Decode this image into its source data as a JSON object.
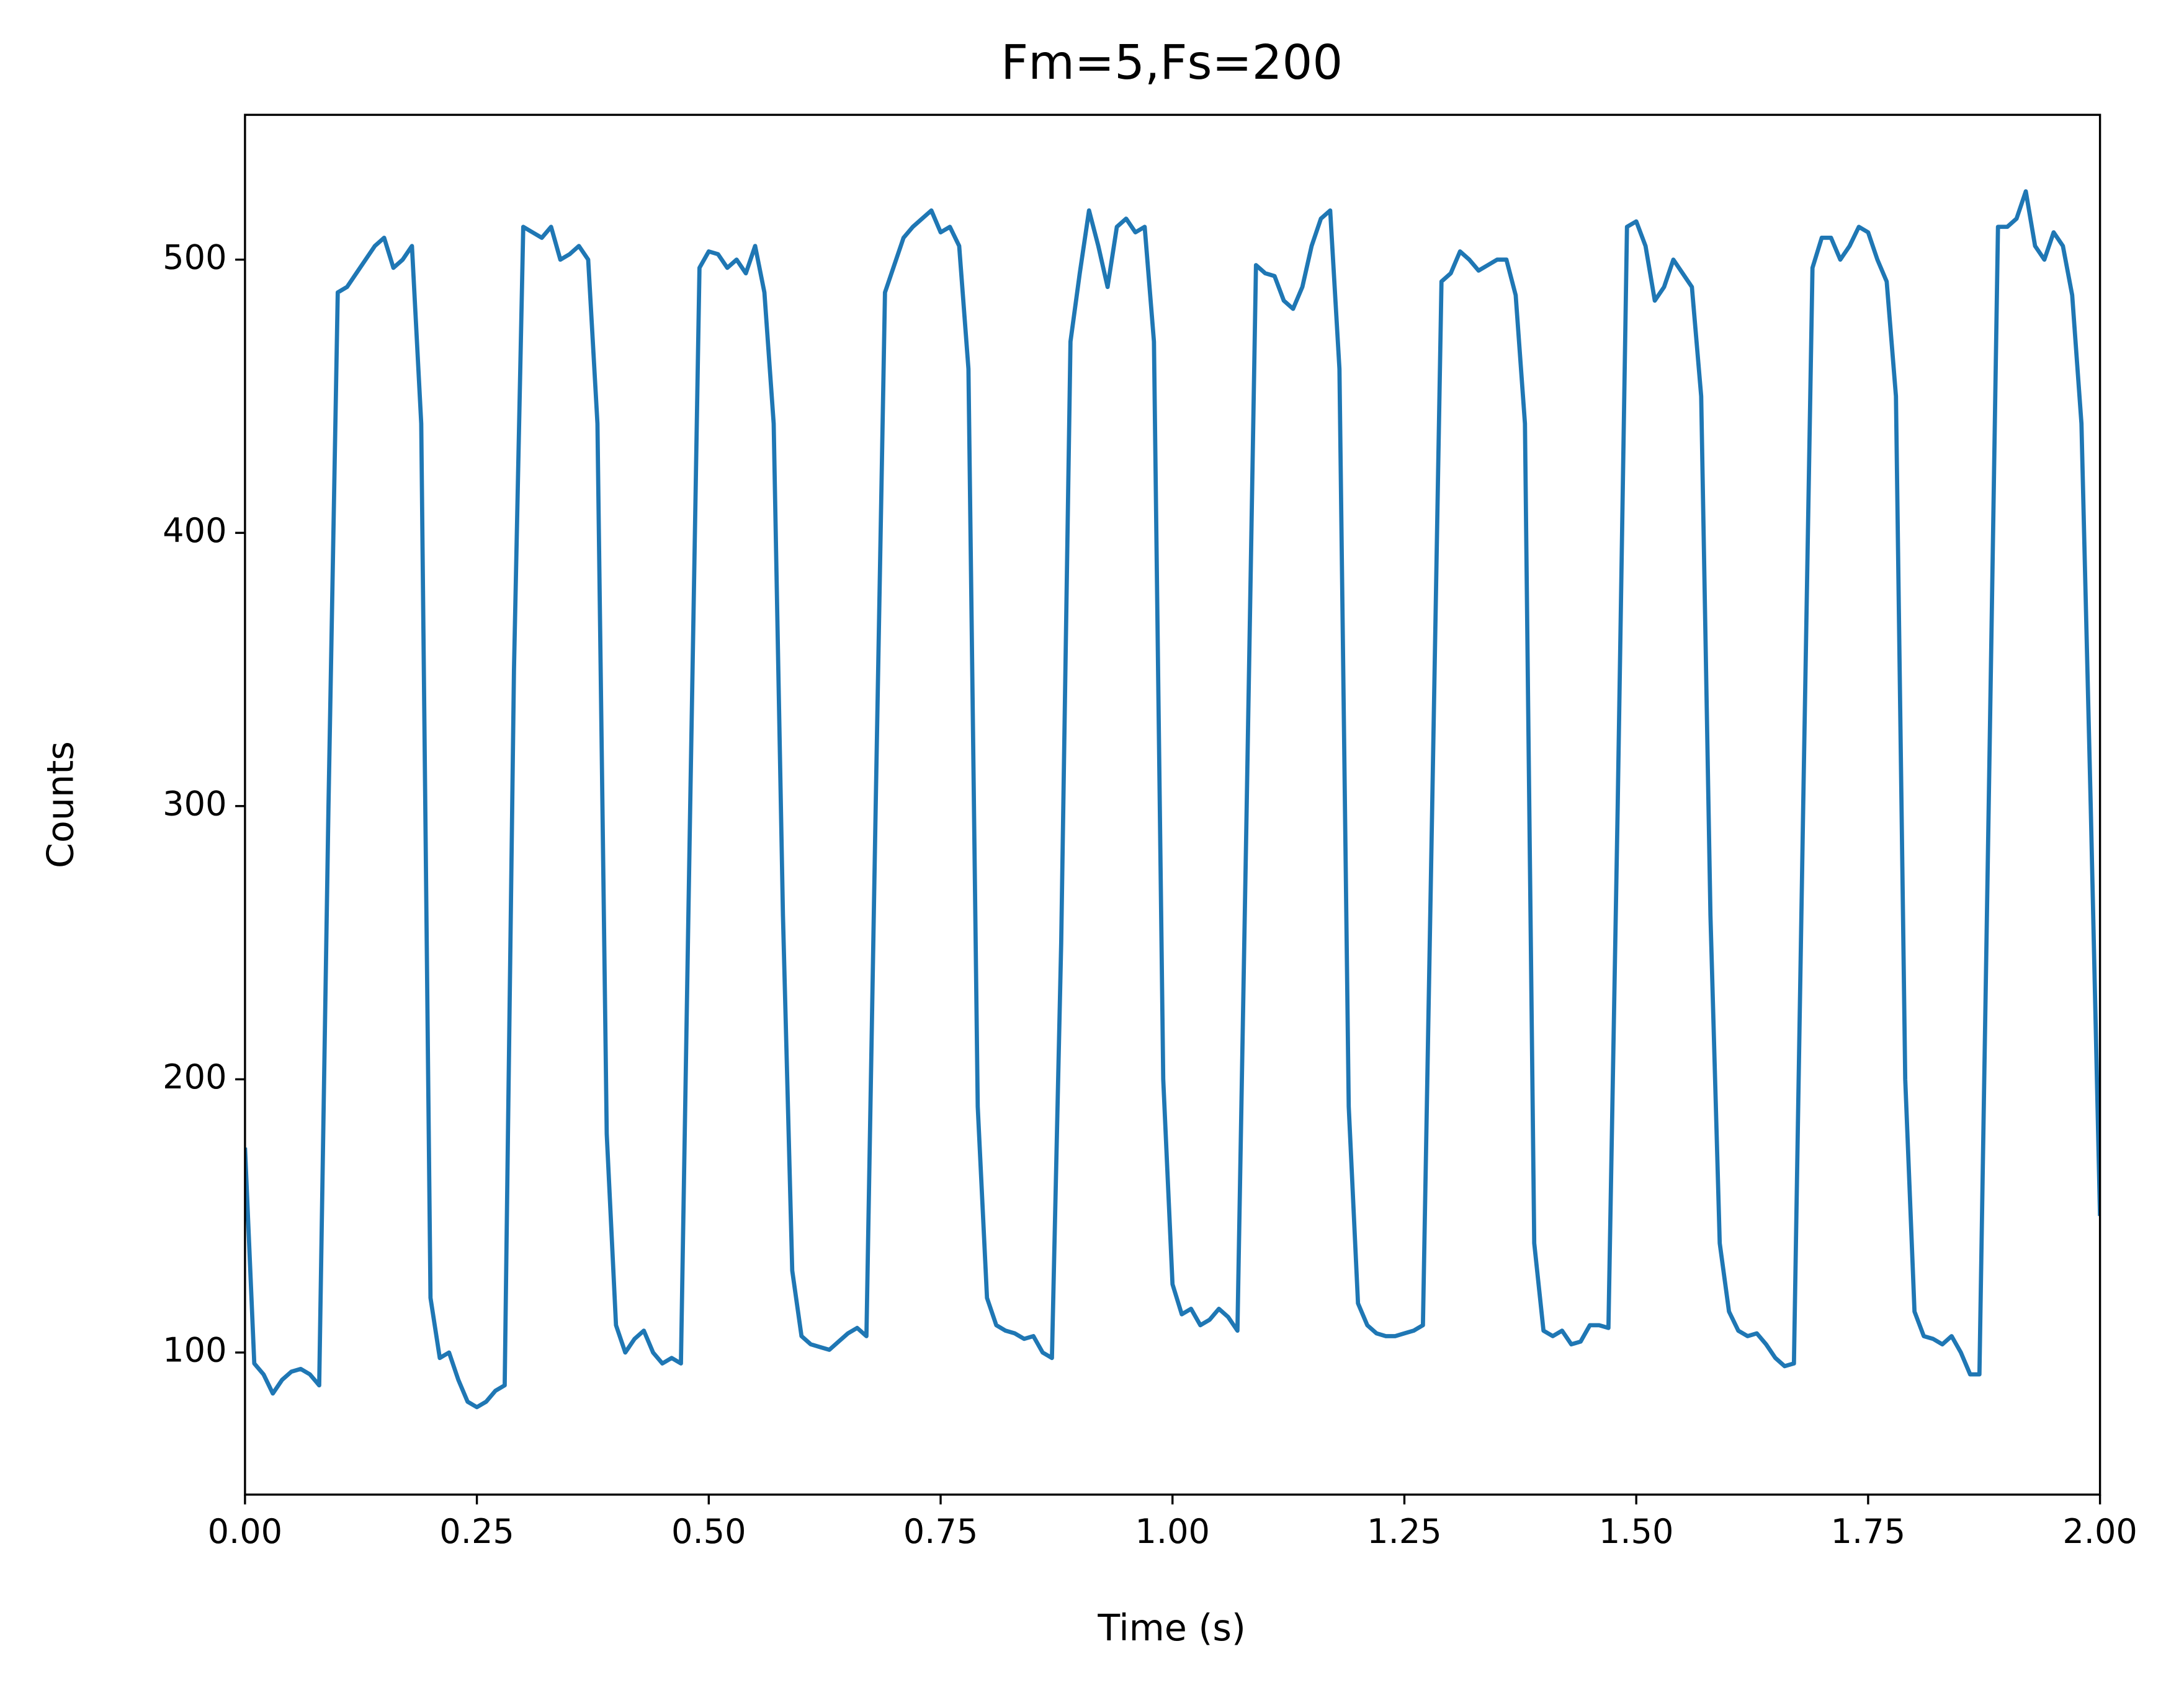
{
  "chart_data": {
    "type": "line",
    "title": "Fm=5,Fs=200",
    "xlabel": "Time (s)",
    "ylabel": "Counts",
    "x": [
      0,
      0.01,
      0.02,
      0.03,
      0.04,
      0.05,
      0.06,
      0.07,
      0.08,
      0.09,
      0.1,
      0.11,
      0.12,
      0.13,
      0.14,
      0.15,
      0.16,
      0.17,
      0.18,
      0.19,
      0.2,
      0.21,
      0.22,
      0.23,
      0.24,
      0.25,
      0.26,
      0.27,
      0.28,
      0.29,
      0.3,
      0.31,
      0.32,
      0.33,
      0.34,
      0.35,
      0.36,
      0.37,
      0.38,
      0.39,
      0.4,
      0.41,
      0.42,
      0.43,
      0.44,
      0.45,
      0.46,
      0.47,
      0.48,
      0.49,
      0.5,
      0.51,
      0.52,
      0.53,
      0.54,
      0.55,
      0.56,
      0.57,
      0.58,
      0.59,
      0.6,
      0.61,
      0.62,
      0.63,
      0.64,
      0.65,
      0.66,
      0.67,
      0.68,
      0.69,
      0.7,
      0.71,
      0.72,
      0.73,
      0.74,
      0.75,
      0.76,
      0.77,
      0.78,
      0.79,
      0.8,
      0.81,
      0.82,
      0.83,
      0.84,
      0.85,
      0.86,
      0.87,
      0.88,
      0.89,
      0.9,
      0.91,
      0.92,
      0.93,
      0.94,
      0.95,
      0.96,
      0.97,
      0.98,
      0.99,
      1,
      1.01,
      1.02,
      1.03,
      1.04,
      1.05,
      1.06,
      1.07,
      1.08,
      1.09,
      1.1,
      1.11,
      1.12,
      1.13,
      1.14,
      1.15,
      1.16,
      1.17,
      1.18,
      1.19,
      1.2,
      1.21,
      1.22,
      1.23,
      1.24,
      1.25,
      1.26,
      1.27,
      1.28,
      1.29,
      1.3,
      1.31,
      1.32,
      1.33,
      1.34,
      1.35,
      1.36,
      1.37,
      1.38,
      1.39,
      1.4,
      1.41,
      1.42,
      1.43,
      1.44,
      1.45,
      1.46,
      1.47,
      1.48,
      1.49,
      1.5,
      1.51,
      1.52,
      1.53,
      1.54,
      1.55,
      1.56,
      1.57,
      1.58,
      1.59,
      1.6,
      1.61,
      1.62,
      1.63,
      1.64,
      1.65,
      1.66,
      1.67,
      1.68,
      1.69,
      1.7,
      1.71,
      1.72,
      1.73,
      1.74,
      1.75,
      1.76,
      1.77,
      1.78,
      1.79,
      1.8,
      1.81,
      1.82,
      1.83,
      1.84,
      1.85,
      1.86,
      1.87,
      1.88,
      1.89,
      1.9,
      1.91,
      1.92,
      1.93,
      1.94,
      1.95,
      1.96,
      1.97,
      1.98,
      1.99,
      2
    ],
    "series": [
      {
        "name": "Counts",
        "color": "#1f77b4",
        "values": [
          175,
          96,
          92,
          85,
          90,
          93,
          94,
          92,
          88,
          300,
          488,
          490,
          495,
          500,
          505,
          508,
          497,
          500,
          505,
          440,
          120,
          98,
          100,
          90,
          82,
          80,
          82,
          86,
          88,
          350,
          512,
          510,
          508,
          512,
          500,
          502,
          505,
          500,
          440,
          180,
          110,
          100,
          105,
          108,
          100,
          96,
          98,
          96,
          300,
          497,
          503,
          502,
          497,
          500,
          495,
          505,
          488,
          440,
          260,
          130,
          106,
          103,
          102,
          101,
          104,
          107,
          109,
          106,
          300,
          488,
          498,
          508,
          512,
          515,
          518,
          510,
          512,
          505,
          460,
          190,
          120,
          110,
          108,
          107,
          105,
          106,
          100,
          98,
          250,
          470,
          495,
          518,
          505,
          490,
          512,
          515,
          510,
          512,
          470,
          200,
          125,
          114,
          116,
          110,
          112,
          116,
          113,
          108,
          300,
          498,
          495,
          494,
          485,
          482,
          490,
          505,
          515,
          518,
          460,
          190,
          118,
          110,
          107,
          106,
          106,
          107,
          108,
          110,
          300,
          492,
          495,
          503,
          500,
          496,
          498,
          500,
          500,
          487,
          440,
          140,
          108,
          106,
          108,
          103,
          104,
          110,
          110,
          109,
          300,
          512,
          514,
          505,
          485,
          490,
          500,
          495,
          490,
          450,
          260,
          140,
          115,
          108,
          106,
          107,
          103,
          98,
          95,
          96,
          300,
          497,
          508,
          508,
          500,
          505,
          512,
          510,
          500,
          492,
          450,
          200,
          115,
          106,
          105,
          103,
          106,
          100,
          92,
          92,
          300,
          512,
          512,
          515,
          525,
          505,
          500,
          510,
          505,
          487,
          440,
          300,
          150
        ]
      }
    ],
    "xlim": [
      0,
      2
    ],
    "ylim": [
      48,
      553
    ],
    "xticks": [
      {
        "value": 0,
        "label": "0.00"
      },
      {
        "value": 0.25,
        "label": "0.25"
      },
      {
        "value": 0.5,
        "label": "0.50"
      },
      {
        "value": 0.75,
        "label": "0.75"
      },
      {
        "value": 1,
        "label": "1.00"
      },
      {
        "value": 1.25,
        "label": "1.25"
      },
      {
        "value": 1.5,
        "label": "1.50"
      },
      {
        "value": 1.75,
        "label": "1.75"
      },
      {
        "value": 2,
        "label": "2.00"
      }
    ],
    "yticks": [
      100,
      200,
      300,
      400,
      500
    ],
    "grid": false
  }
}
